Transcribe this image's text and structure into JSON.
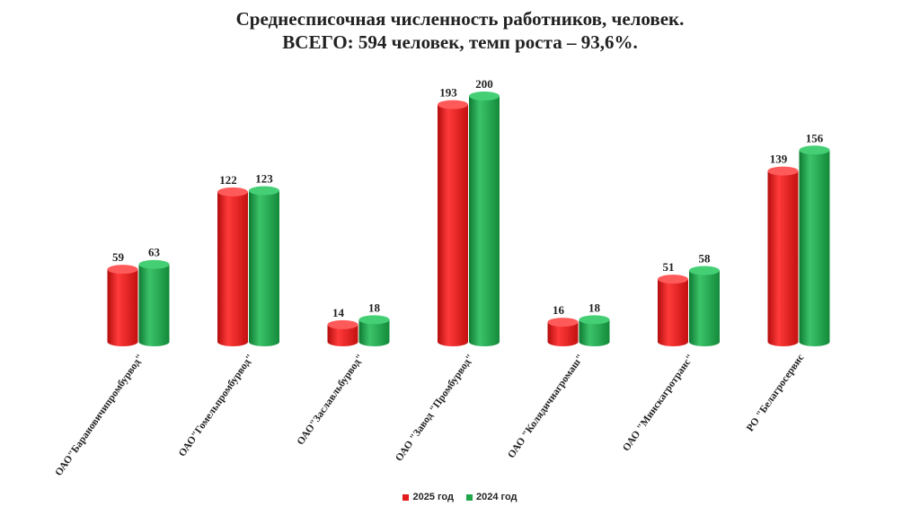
{
  "chart_data": {
    "type": "bar",
    "title": "Среднесписочная численность работников, человек.",
    "subtitle": "ВСЕГО: 594 человек, темп роста – 93,6%.",
    "categories": [
      "ОАО\"Барановичипромбурвод\"",
      "ОАО\"Гомельпромбурвод\"",
      "ОАО\"Заславльбурвод\"",
      "ОАО \"Завод \"Промбурвод\"",
      "ОАО \"Колядичиагромаш\"",
      "ОАО \"Минскагротранс\"",
      "РО \"Белагросервис"
    ],
    "series": [
      {
        "name": "2025 год",
        "color": "#e31b1b",
        "values": [
          59,
          122,
          14,
          193,
          16,
          51,
          139
        ]
      },
      {
        "name": "2024 год",
        "color": "#1fa64a",
        "values": [
          63,
          123,
          18,
          200,
          18,
          58,
          156
        ]
      }
    ],
    "ylim": [
      0,
      200
    ],
    "legend_position": "bottom",
    "grid": false,
    "style": "3d-cylinder"
  }
}
